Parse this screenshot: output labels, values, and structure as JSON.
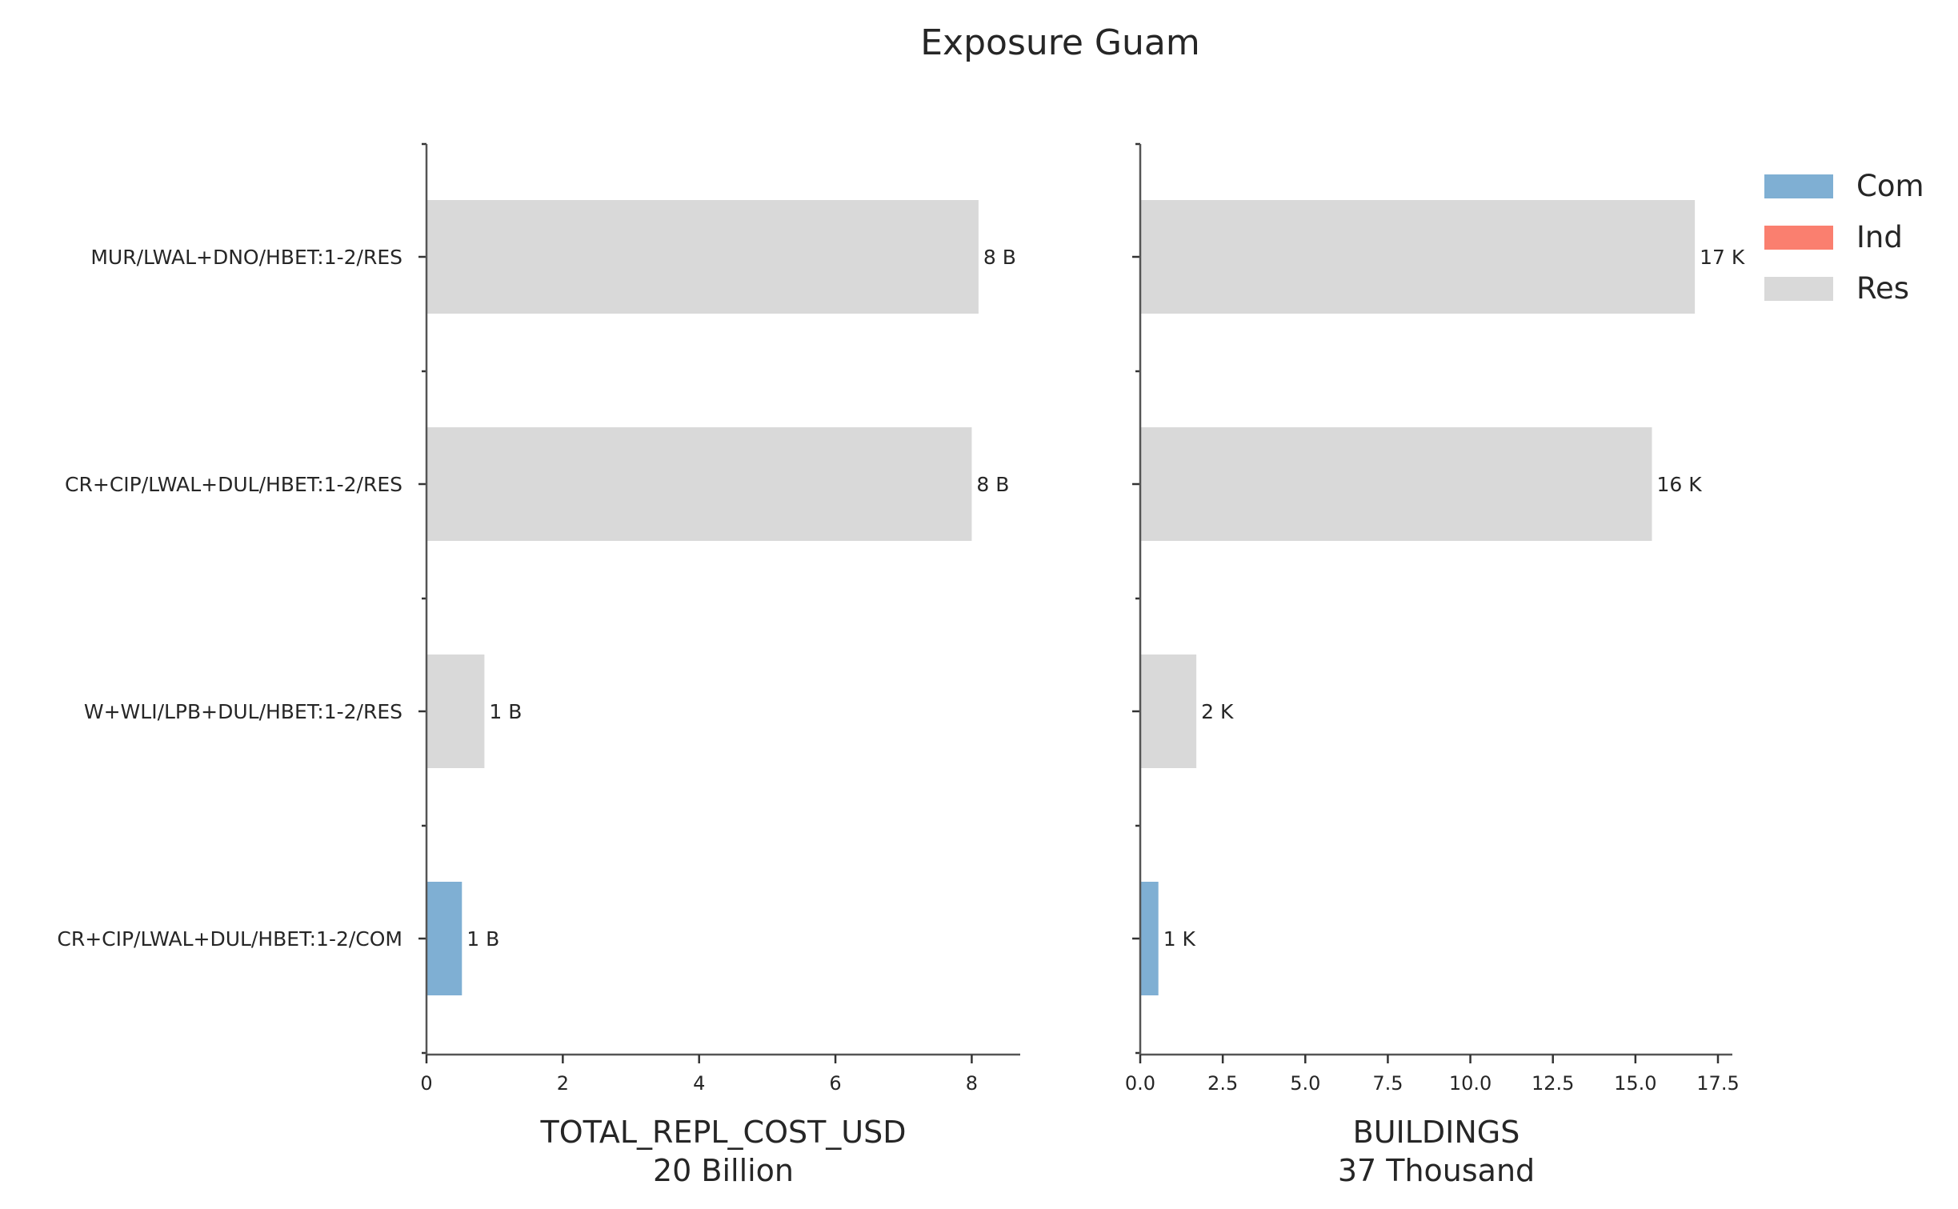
{
  "chart_data": {
    "type": "bar",
    "title": "Exposure Guam",
    "orientation": "horizontal",
    "categories": [
      "MUR/LWAL+DNO/HBET:1-2/RES",
      "CR+CIP/LWAL+DUL/HBET:1-2/RES",
      "W+WLI/LPB+DUL/HBET:1-2/RES",
      "CR+CIP/LWAL+DUL/HBET:1-2/COM"
    ],
    "category_class": [
      "Res",
      "Res",
      "Res",
      "Com"
    ],
    "legend": {
      "placement": "top-right",
      "entries": [
        {
          "name": "Com",
          "color": "#7fafd3"
        },
        {
          "name": "Ind",
          "color": "#fa7f6f"
        },
        {
          "name": "Res",
          "color": "#d9d9d9"
        }
      ]
    },
    "panels": [
      {
        "xlabel": "TOTAL_REPL_COST_USD",
        "xlabel_sub": "20 Billion",
        "xlim": [
          0,
          8.5
        ],
        "xticks": [
          "0",
          "2",
          "4",
          "6",
          "8"
        ],
        "xtick_values": [
          0,
          2,
          4,
          6,
          8
        ],
        "values": [
          8.1,
          8.0,
          0.85,
          0.52
        ],
        "value_labels": [
          "8 B",
          "8 B",
          "1 B",
          "1 B"
        ],
        "show_category_labels": true
      },
      {
        "xlabel": "BUILDINGS",
        "xlabel_sub": "37 Thousand",
        "xlim": [
          0,
          17.5
        ],
        "xticks": [
          "0.0",
          "2.5",
          "5.0",
          "7.5",
          "10.0",
          "12.5",
          "15.0",
          "17.5"
        ],
        "xtick_values": [
          0,
          2.5,
          5.0,
          7.5,
          10.0,
          12.5,
          15.0,
          17.5
        ],
        "values": [
          16.8,
          15.5,
          1.7,
          0.55
        ],
        "value_labels": [
          "17 K",
          "16 K",
          "2 K",
          "1 K"
        ],
        "show_category_labels": false
      }
    ],
    "grid": false
  }
}
